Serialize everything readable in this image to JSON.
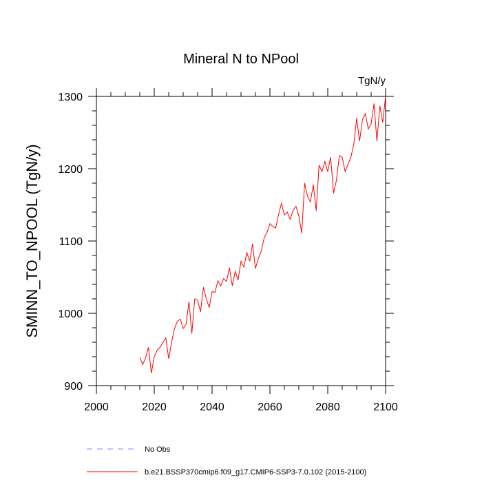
{
  "chart_data": {
    "type": "line",
    "title": "Mineral N to NPool",
    "units_label": "TgN/y",
    "ylabel": "SMINN_TO_NPOOL  (TgN/y)",
    "xlabel": "",
    "xlim": [
      2000,
      2100
    ],
    "ylim": [
      900,
      1300
    ],
    "x_ticks": [
      2000,
      2020,
      2040,
      2060,
      2080,
      2100
    ],
    "y_ticks": [
      900,
      1000,
      1100,
      1200,
      1300
    ],
    "x_tick_labels": [
      "2000",
      "2020",
      "2040",
      "2060",
      "2080",
      "2100"
    ],
    "y_tick_labels": [
      "900",
      "1000",
      "1100",
      "1200",
      "1300"
    ],
    "grid": false,
    "legend": [
      {
        "label": "No Obs",
        "color": "#8080ff",
        "style": "dashed"
      },
      {
        "label": "b.e21.BSSP370cmip6.f09_g17.CMIP6-SSP3-7.0.102 (2015-2100)",
        "color": "#ff0000",
        "style": "solid"
      }
    ],
    "series": [
      {
        "color": "#ff0000",
        "x": [
          2015,
          2016,
          2017,
          2018,
          2019,
          2020,
          2021,
          2022,
          2023,
          2024,
          2025,
          2026,
          2027,
          2028,
          2029,
          2030,
          2031,
          2032,
          2033,
          2034,
          2035,
          2036,
          2037,
          2038,
          2039,
          2040,
          2041,
          2042,
          2043,
          2044,
          2045,
          2046,
          2047,
          2048,
          2049,
          2050,
          2051,
          2052,
          2053,
          2054,
          2055,
          2056,
          2057,
          2058,
          2059,
          2060,
          2061,
          2062,
          2063,
          2064,
          2065,
          2066,
          2067,
          2068,
          2069,
          2070,
          2071,
          2072,
          2073,
          2074,
          2075,
          2076,
          2077,
          2078,
          2079,
          2080,
          2081,
          2082,
          2083,
          2084,
          2085,
          2086,
          2087,
          2088,
          2089,
          2090,
          2091,
          2092,
          2093,
          2094,
          2095,
          2096,
          2097,
          2098,
          2099,
          2100
        ],
        "values": [
          939,
          929,
          938,
          953,
          917,
          940,
          949,
          953,
          960,
          966,
          937,
          960,
          979,
          989,
          992,
          979,
          985,
          1016,
          972,
          1020,
          1018,
          1002,
          1036,
          1020,
          1008,
          1030,
          1029,
          1045,
          1038,
          1048,
          1044,
          1063,
          1038,
          1058,
          1046,
          1072,
          1064,
          1084,
          1072,
          1096,
          1062,
          1076,
          1086,
          1104,
          1112,
          1124,
          1120,
          1118,
          1137,
          1152,
          1136,
          1140,
          1130,
          1142,
          1148,
          1135,
          1111,
          1180,
          1162,
          1154,
          1178,
          1142,
          1205,
          1196,
          1210,
          1196,
          1216,
          1166,
          1184,
          1218,
          1216,
          1196,
          1206,
          1216,
          1234,
          1270,
          1238,
          1268,
          1276,
          1255,
          1262,
          1290,
          1238,
          1287,
          1264,
          1300
        ]
      }
    ]
  }
}
